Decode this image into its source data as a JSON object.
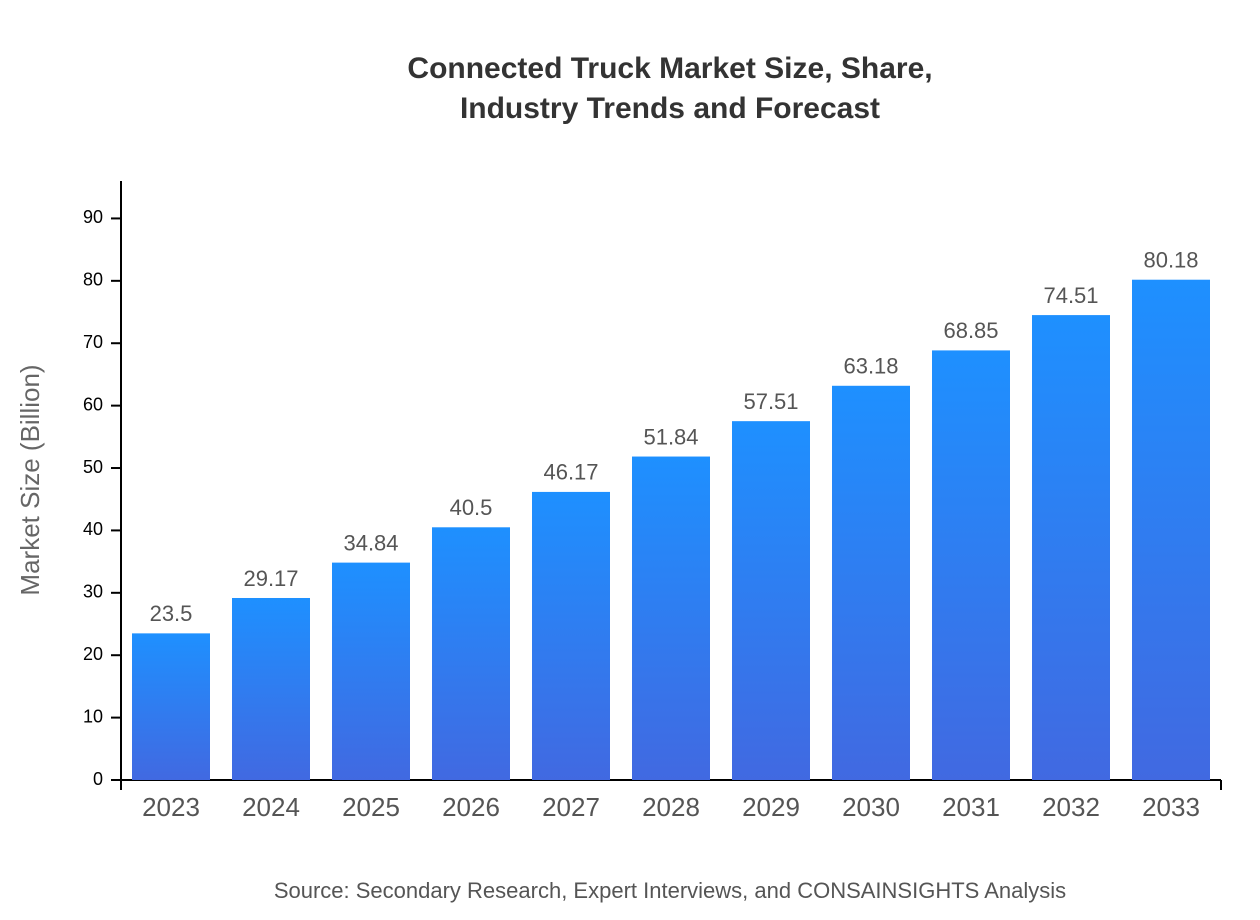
{
  "chart_data": {
    "type": "bar",
    "title": [
      "Connected Truck Market Size, Share,",
      "Industry Trends and Forecast"
    ],
    "y_label": "Market Size (Billion)",
    "source": "Source: Secondary Research, Expert Interviews, and CONSAINSIGHTS Analysis",
    "categories": [
      "2023",
      "2024",
      "2025",
      "2026",
      "2027",
      "2028",
      "2029",
      "2030",
      "2031",
      "2032",
      "2033"
    ],
    "values": [
      23.5,
      29.17,
      34.84,
      40.5,
      46.17,
      51.84,
      57.51,
      63.18,
      68.85,
      74.51,
      80.18
    ],
    "gradient": [
      "#1e90ff",
      "#4169e1"
    ],
    "ylim": [
      0,
      96
    ],
    "yticks": [
      0,
      10,
      20,
      30,
      40,
      50,
      60,
      70,
      80,
      90
    ],
    "grid": false
  }
}
